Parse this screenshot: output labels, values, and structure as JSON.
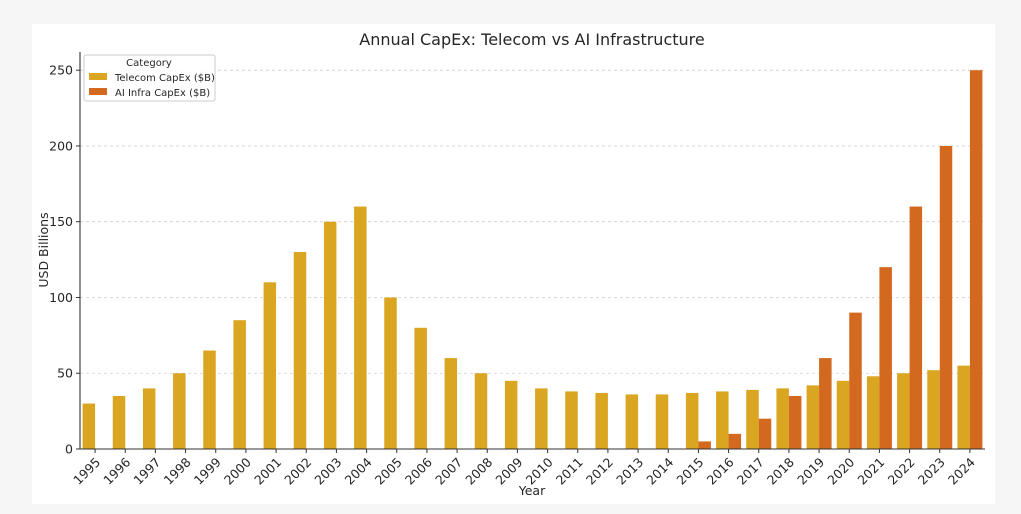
{
  "chart_data": {
    "type": "bar",
    "title": "Annual CapEx: Telecom vs AI Infrastructure",
    "xlabel": "Year",
    "ylabel": "USD Billions",
    "ylim": [
      0,
      262
    ],
    "yticks": [
      0,
      50,
      100,
      150,
      200,
      250
    ],
    "grid": "horizontal dashed",
    "legend": {
      "title": "Category",
      "placement": "top-left"
    },
    "categories": [
      "1995",
      "1996",
      "1997",
      "1998",
      "1999",
      "2000",
      "2001",
      "2002",
      "2003",
      "2004",
      "2005",
      "2006",
      "2007",
      "2008",
      "2009",
      "2010",
      "2011",
      "2012",
      "2013",
      "2014",
      "2015",
      "2016",
      "2017",
      "2018",
      "2019",
      "2020",
      "2021",
      "2022",
      "2023",
      "2024"
    ],
    "series": [
      {
        "name": "Telecom CapEx ($B)",
        "color": "#DAA520",
        "values": [
          30,
          35,
          40,
          50,
          65,
          85,
          110,
          130,
          150,
          160,
          100,
          80,
          60,
          50,
          45,
          40,
          38,
          37,
          36,
          36,
          37,
          38,
          39,
          40,
          42,
          45,
          48,
          50,
          52,
          55
        ]
      },
      {
        "name": "AI Infra CapEx ($B)",
        "color": "#D2691E",
        "values": [
          0,
          0,
          0,
          0,
          0,
          0,
          0,
          0,
          0,
          0,
          0,
          0,
          0,
          0,
          0,
          0,
          0,
          0,
          0,
          0,
          5,
          10,
          20,
          35,
          60,
          90,
          120,
          160,
          200,
          250
        ]
      }
    ]
  }
}
